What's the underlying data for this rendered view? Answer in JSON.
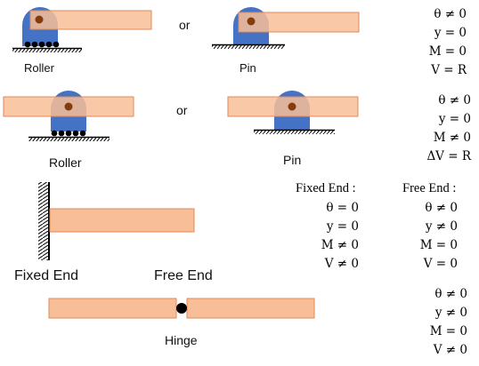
{
  "row1": {
    "left_label": "Roller",
    "or_label": "or",
    "right_label": "Pin",
    "conditions": [
      "θ ≠ 0",
      "y = 0",
      "M = 0",
      "V = R"
    ]
  },
  "row2": {
    "left_label": "Roller",
    "or_label": "or",
    "right_label": "Pin",
    "conditions": [
      "θ ≠ 0",
      "y = 0",
      "M ≠ 0",
      "ΔV = R"
    ]
  },
  "row3": {
    "fixed_label": "Fixed End",
    "free_label": "Free End",
    "fixed_header": "Fixed End :",
    "free_header": "Free End :",
    "fixed_conditions": [
      "θ = 0",
      "y = 0",
      "M ≠ 0",
      "V ≠ 0"
    ],
    "free_conditions": [
      "θ ≠ 0",
      "y ≠ 0",
      "M = 0",
      "V = 0"
    ]
  },
  "row4": {
    "hinge_label": "Hinge",
    "conditions": [
      "θ ≠ 0",
      "y ≠ 0",
      "M = 0",
      "V ≠ 0"
    ]
  },
  "colors": {
    "beam": "#f8be98",
    "beam_edge": "#e0895a",
    "support": "#4472c4",
    "pin": "#843c0c",
    "ground": "#000000"
  }
}
